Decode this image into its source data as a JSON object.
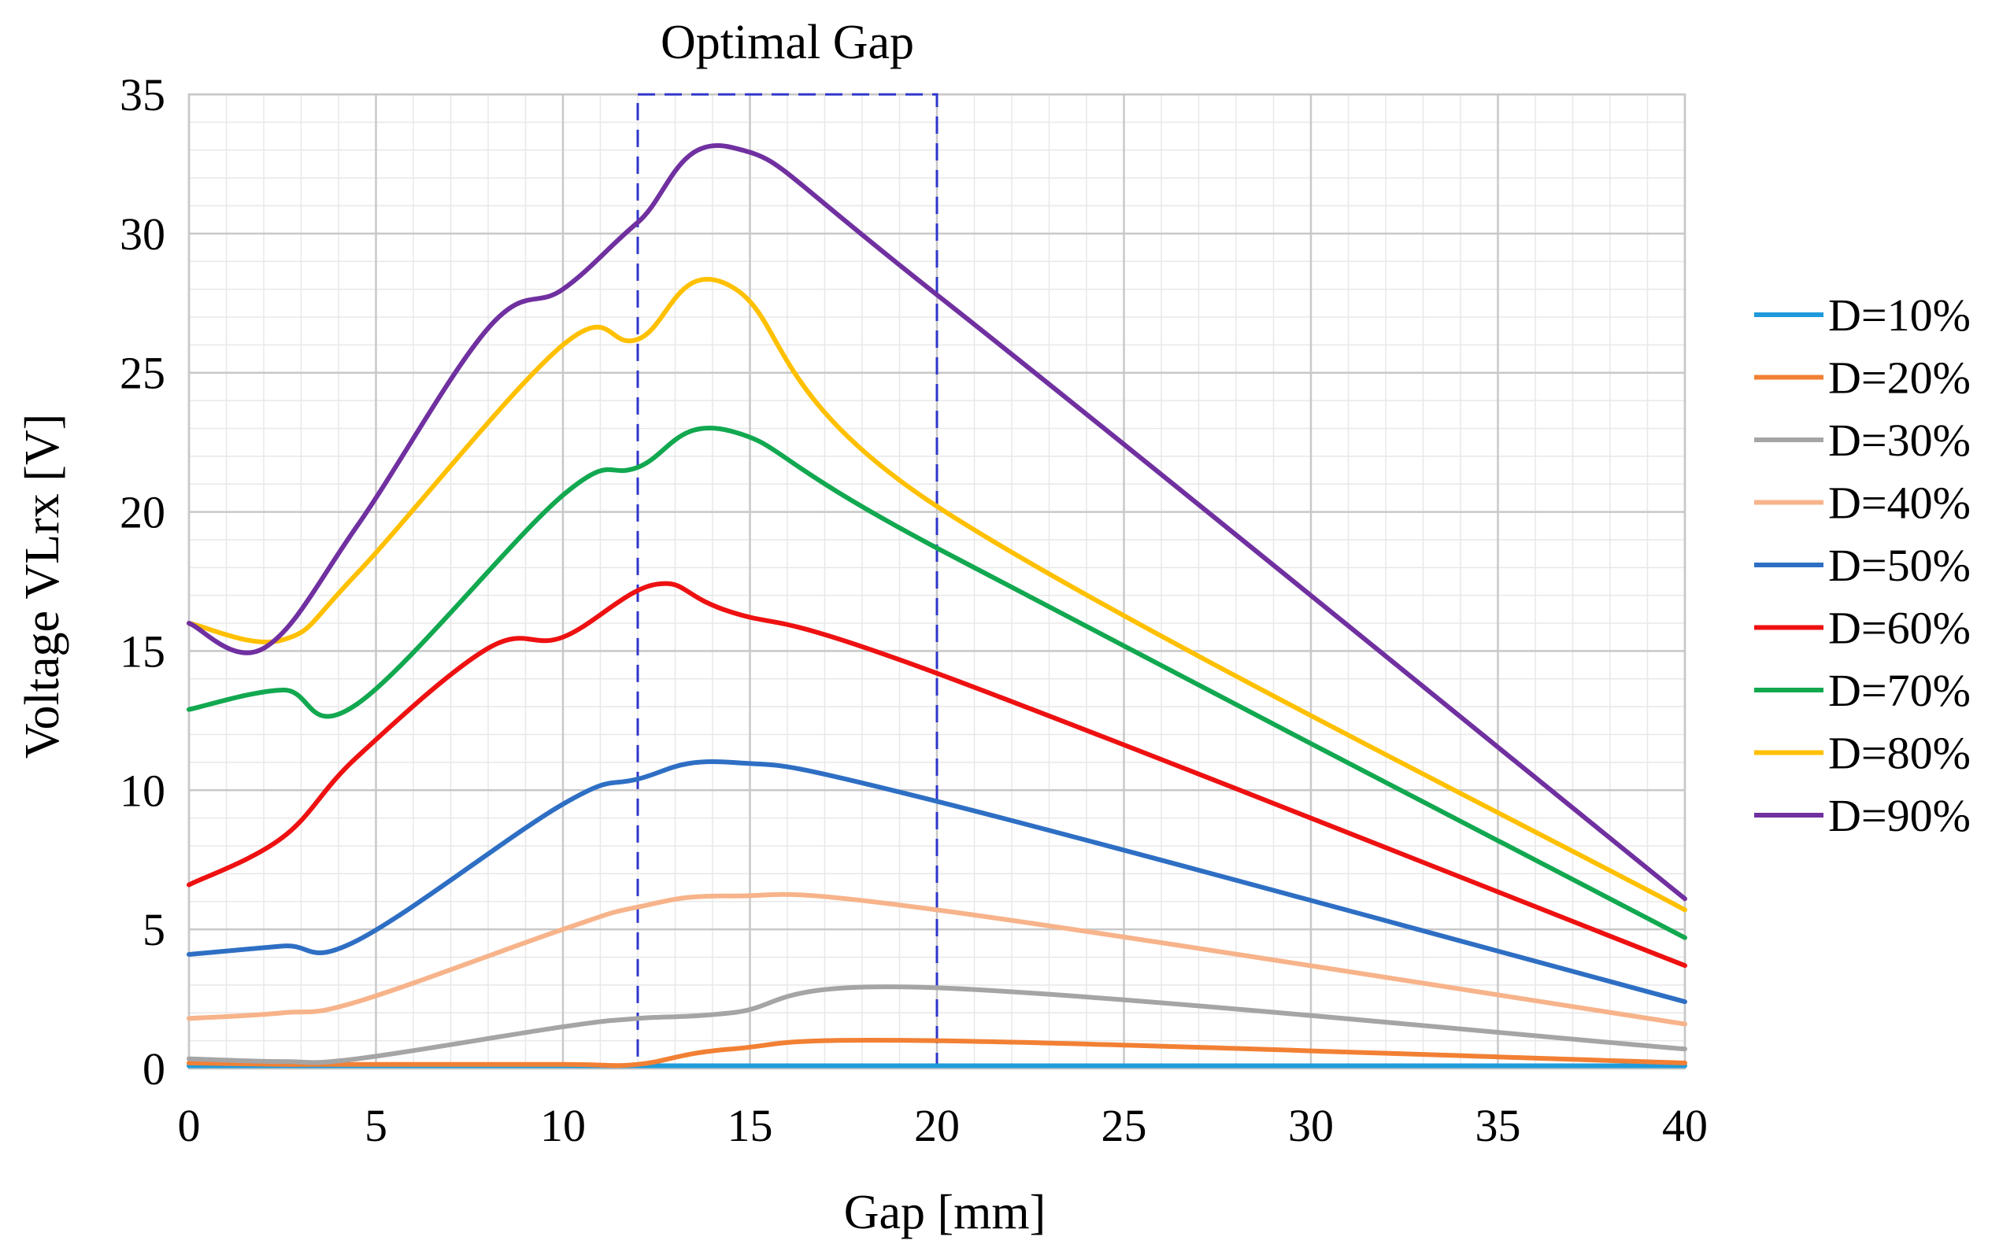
{
  "chart_data": {
    "type": "line",
    "title": "",
    "xlabel": "Gap [mm]",
    "ylabel": "Voltage VLrx [V]",
    "xlim": [
      0,
      40
    ],
    "ylim": [
      0,
      35
    ],
    "xticks": [
      0,
      5,
      10,
      15,
      20,
      25,
      30,
      35,
      40
    ],
    "yticks": [
      0,
      5,
      10,
      15,
      20,
      25,
      30,
      35
    ],
    "grid": true,
    "legend_position": "right",
    "annotation": {
      "label": "Optimal Gap",
      "x_range": [
        12,
        20
      ],
      "color": "#2E35C9"
    },
    "series": [
      {
        "name": "D=10%",
        "color": "#1F9BDB",
        "x": [
          0,
          2.5,
          4.5,
          10,
          12,
          14.5,
          20,
          40
        ],
        "y": [
          0.1,
          0.1,
          0.1,
          0.1,
          0.1,
          0.1,
          0.1,
          0.1
        ]
      },
      {
        "name": "D=20%",
        "color": "#F28034",
        "x": [
          0,
          2.5,
          4.5,
          10,
          12,
          14.5,
          20,
          40
        ],
        "y": [
          0.2,
          0.15,
          0.15,
          0.15,
          0.15,
          0.7,
          1.0,
          0.2
        ]
      },
      {
        "name": "D=30%",
        "color": "#A5A5A5",
        "x": [
          0,
          2.5,
          4.5,
          10,
          12,
          14.5,
          20,
          40
        ],
        "y": [
          0.35,
          0.25,
          0.35,
          1.5,
          1.8,
          2.0,
          2.9,
          0.7
        ]
      },
      {
        "name": "D=40%",
        "color": "#F7B38A",
        "x": [
          0,
          2.5,
          4.5,
          10,
          12,
          14.5,
          20,
          40
        ],
        "y": [
          1.8,
          2.0,
          2.4,
          5.0,
          5.8,
          6.2,
          5.7,
          1.6
        ]
      },
      {
        "name": "D=50%",
        "color": "#2E6FC4",
        "x": [
          0,
          2.5,
          4.5,
          10,
          12,
          14.5,
          20,
          40
        ],
        "y": [
          4.1,
          4.4,
          4.6,
          9.5,
          10.4,
          11.0,
          9.6,
          2.4
        ]
      },
      {
        "name": "D=60%",
        "color": "#EE1111",
        "x": [
          0,
          2.5,
          4.5,
          8,
          10,
          12.5,
          14.5,
          20,
          40
        ],
        "y": [
          6.6,
          8.3,
          11.2,
          15.1,
          15.5,
          17.4,
          16.4,
          14.2,
          3.7
        ]
      },
      {
        "name": "D=70%",
        "color": "#12A850",
        "x": [
          0,
          2.5,
          4.5,
          10,
          12,
          14.5,
          20,
          40
        ],
        "y": [
          12.9,
          13.6,
          13.1,
          20.6,
          21.6,
          22.9,
          18.7,
          4.7
        ]
      },
      {
        "name": "D=80%",
        "color": "#FFC000",
        "x": [
          0,
          2.5,
          4.5,
          10,
          12,
          14.5,
          20,
          40
        ],
        "y": [
          16.0,
          15.4,
          17.8,
          26.0,
          26.2,
          28.1,
          20.2,
          5.7
        ]
      },
      {
        "name": "D=90%",
        "color": "#7030A0",
        "x": [
          0,
          2,
          4.5,
          8,
          10,
          12,
          14.5,
          20,
          40
        ],
        "y": [
          16.0,
          15.1,
          19.5,
          26.6,
          28.0,
          30.4,
          33.1,
          27.8,
          6.1
        ]
      }
    ]
  }
}
